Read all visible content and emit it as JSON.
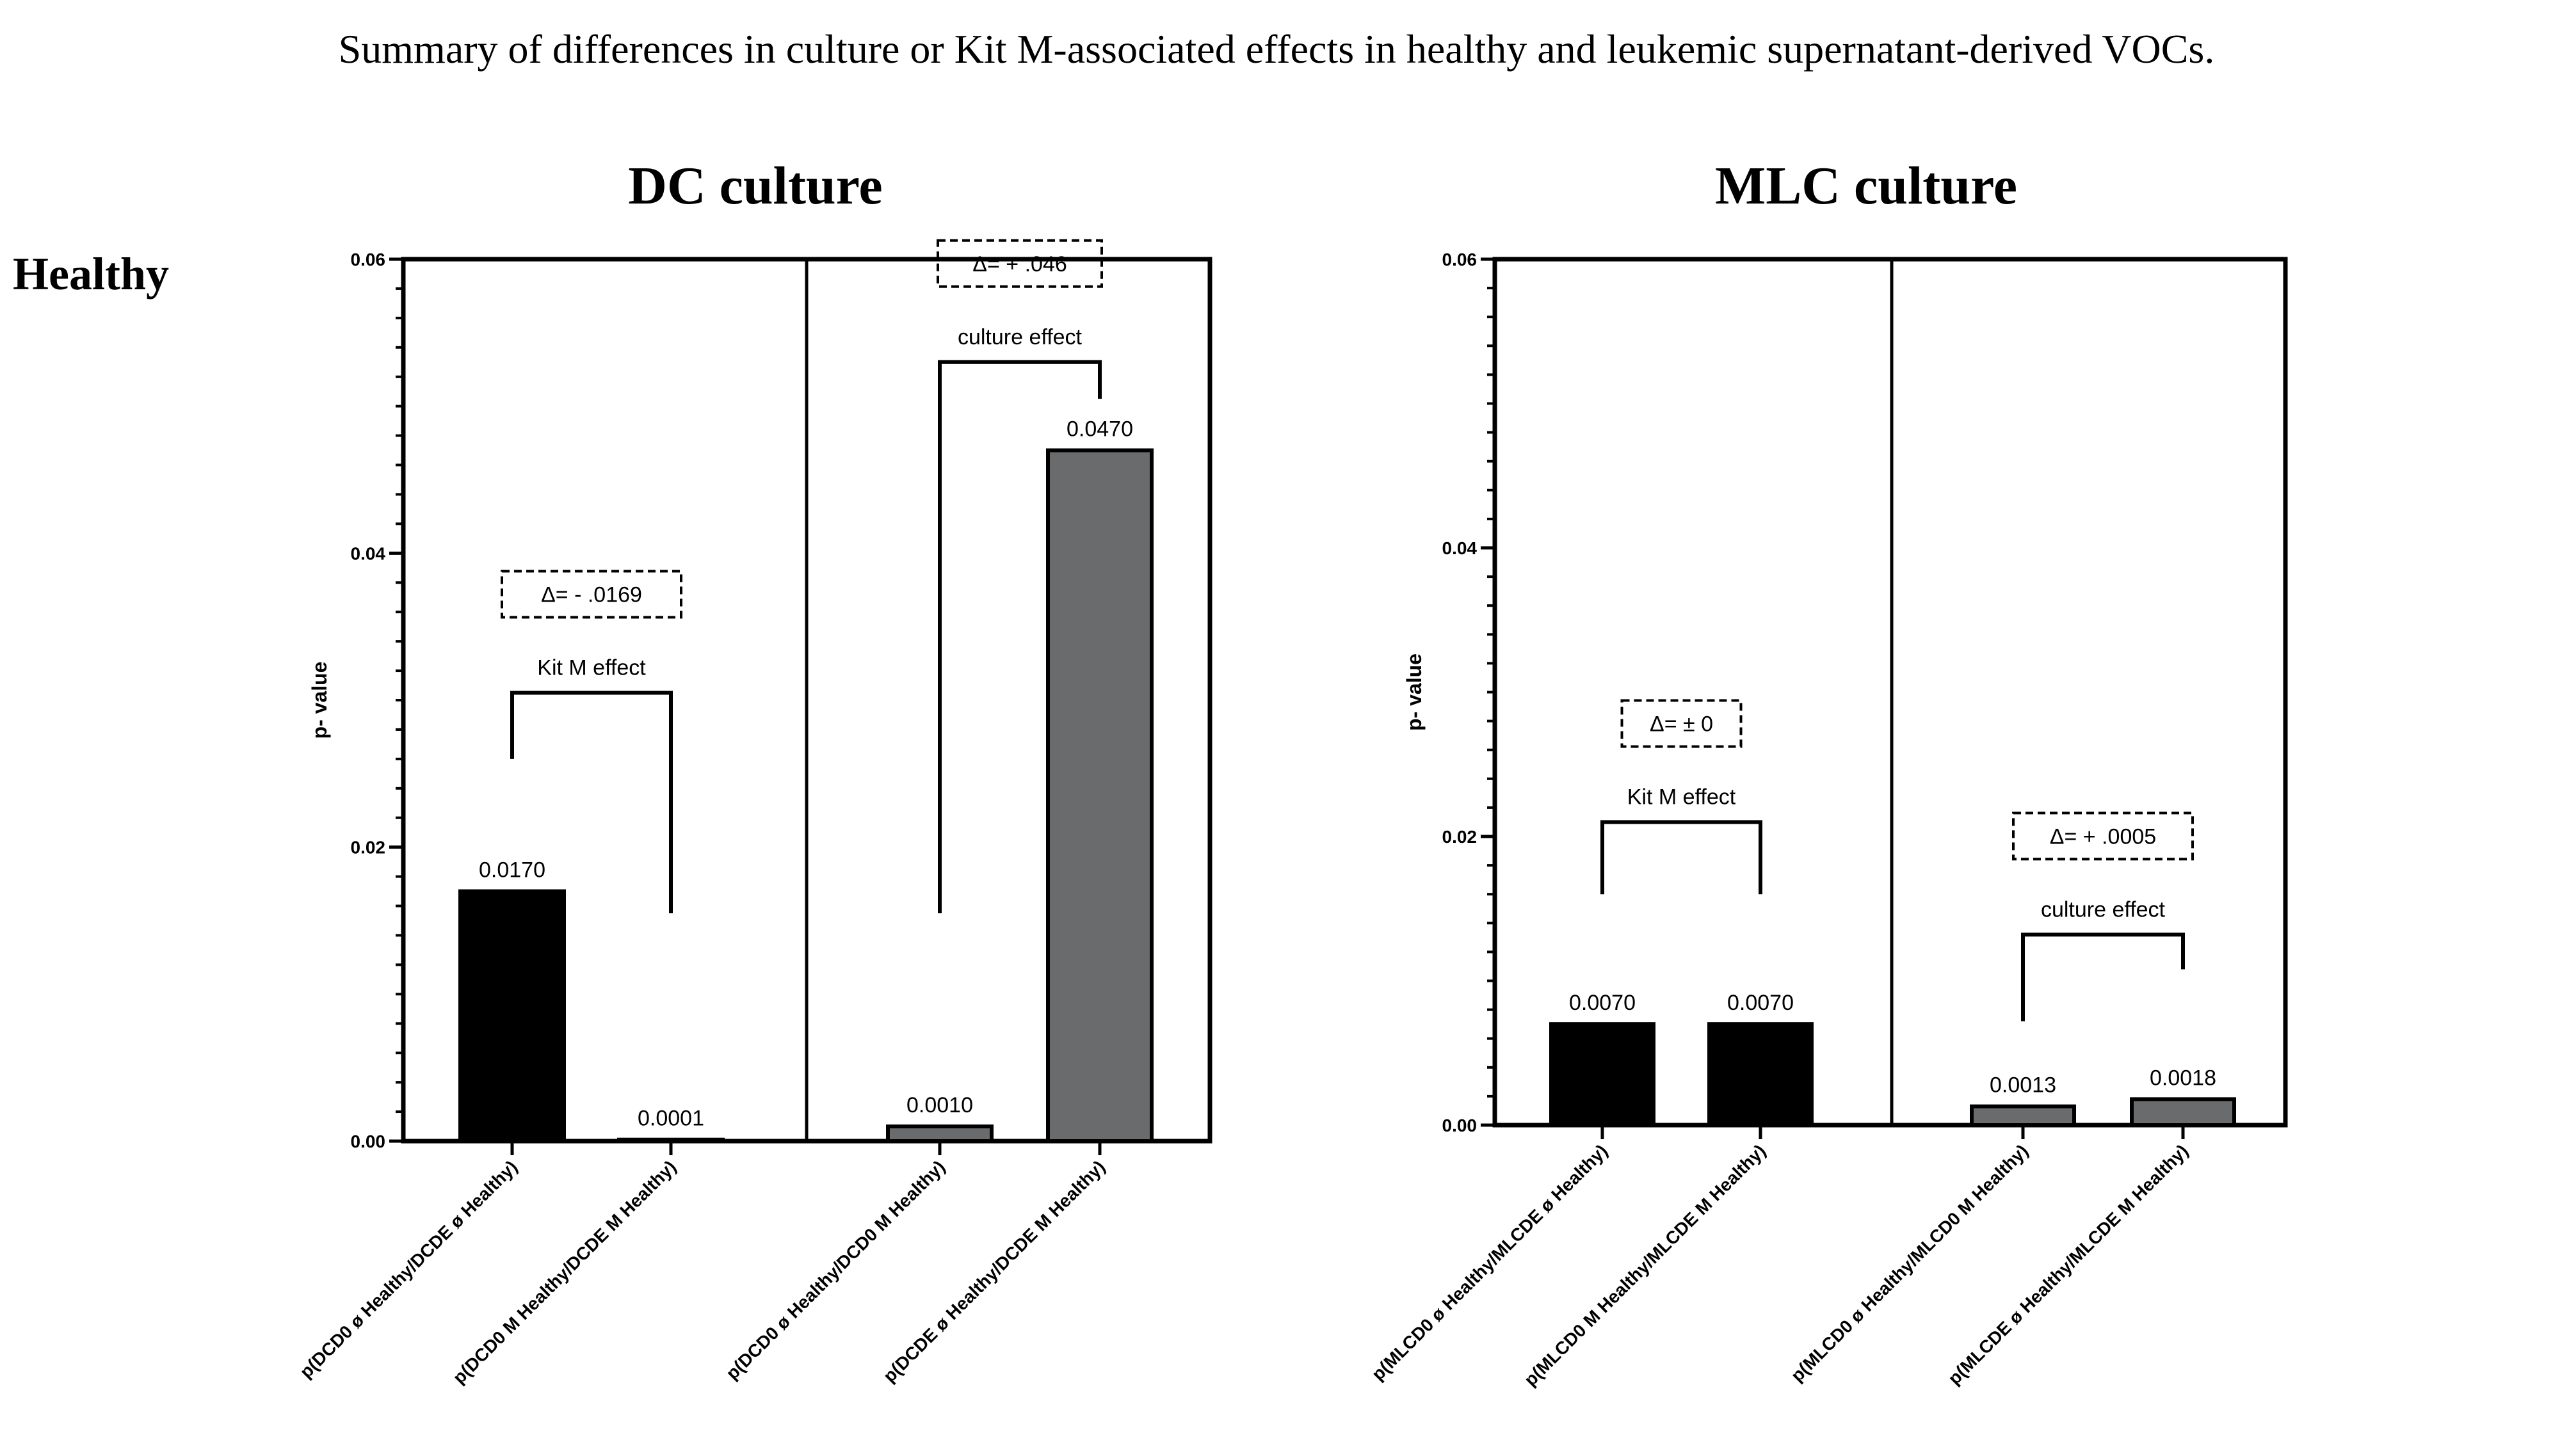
{
  "figure_title": "Summary of differences in culture or Kit M-associated effects in healthy and leukemic supernatant-derived VOCs.",
  "row_label": "Healthy",
  "colors": {
    "black_bar": "#000000",
    "gray_bar": "#6a6b6d",
    "outline": "#000000",
    "background": "#ffffff"
  },
  "chart_data": [
    {
      "type": "bar",
      "title": "DC culture",
      "ylabel": "p- value",
      "ylim": [
        0,
        0.06
      ],
      "yticks": [
        "0.00",
        "0.02",
        "0.04",
        "0.06"
      ],
      "categories": [
        "p(DCD0 ø Healthy/DCDE ø Healthy)",
        "p(DCD0 M Healthy/DCDE M Healthy)",
        "p(DCD0 ø Healthy/DCD0 M Healthy)",
        "p(DCDE ø Healthy/DCDE M Healthy)"
      ],
      "values": [
        0.017,
        0.0001,
        0.001,
        0.047
      ],
      "value_labels": [
        "0.0170",
        "0.0001",
        "0.0010",
        "0.0470"
      ],
      "bar_colors": [
        "#000000",
        "#000000",
        "#6a6b6d",
        "#6a6b6d"
      ],
      "group_divider_after_index": 1,
      "annotations": [
        {
          "label": "Kit M effect",
          "delta": "Δ= - .0169",
          "from": 0,
          "to": 1,
          "bracket_y": 0.0305,
          "left_end": 0.026,
          "right_end": 0.0155
        },
        {
          "label": "culture effect",
          "delta": "Δ= + .046",
          "from": 2,
          "to": 3,
          "bracket_y": 0.053,
          "left_end": 0.0155,
          "right_end": 0.0505
        }
      ]
    },
    {
      "type": "bar",
      "title": "MLC culture",
      "ylabel": "p- value",
      "ylim": [
        0,
        0.06
      ],
      "yticks": [
        "0.00",
        "0.02",
        "0.04",
        "0.06"
      ],
      "categories": [
        "p(MLCD0 ø Healthy/MLCDE ø Healthy)",
        "p(MLCD0 M Healthy/MLCDE M Healthy)",
        "p(MLCD0 ø Healthy/MLCD0 M Healthy)",
        "p(MLCDE ø Healthy/MLCDE M Healthy)"
      ],
      "values": [
        0.007,
        0.007,
        0.0013,
        0.0018
      ],
      "value_labels": [
        "0.0070",
        "0.0070",
        "0.0013",
        "0.0018"
      ],
      "bar_colors": [
        "#000000",
        "#000000",
        "#6a6b6d",
        "#6a6b6d"
      ],
      "group_divider_after_index": 1,
      "annotations": [
        {
          "label": "Kit M effect",
          "delta": "Δ= ± 0",
          "from": 0,
          "to": 1,
          "bracket_y": 0.021,
          "left_end": 0.016,
          "right_end": 0.016
        },
        {
          "label": "culture effect",
          "delta": "Δ= + .0005",
          "from": 2,
          "to": 3,
          "bracket_y": 0.0132,
          "left_end": 0.0072,
          "right_end": 0.0108
        }
      ]
    }
  ]
}
